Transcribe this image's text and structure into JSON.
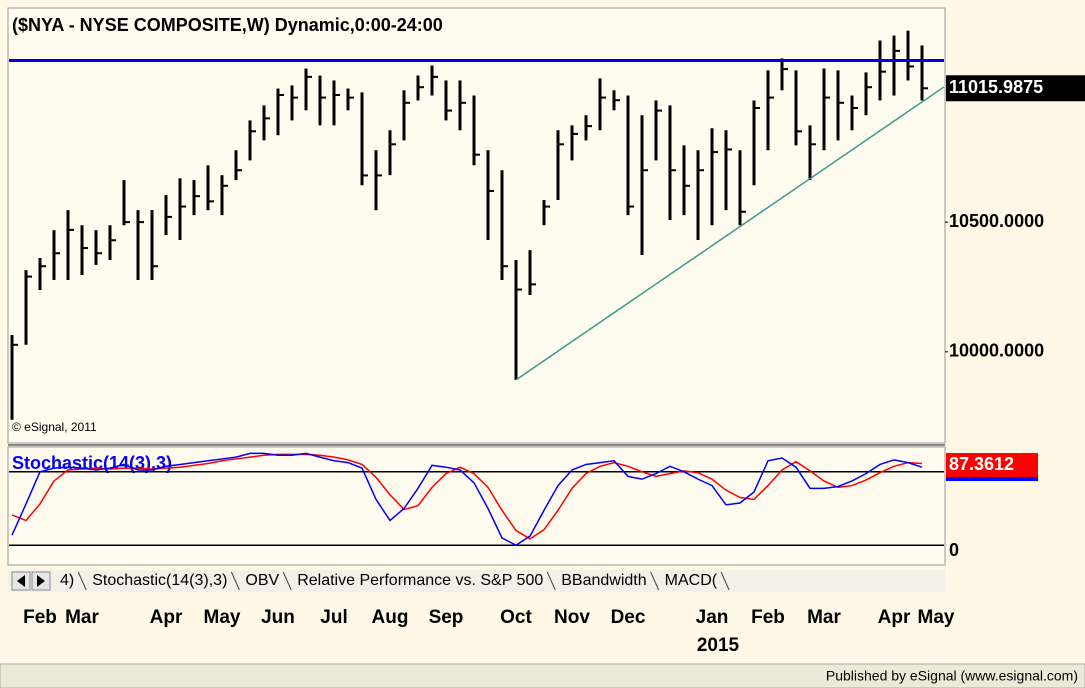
{
  "chart_data": [
    {
      "type": "ohlc",
      "title": "($NYA - NYSE COMPOSITE,W) Dynamic,0:00-24:00",
      "annotation": "© eSignal, 2011",
      "categories": [
        null,
        null,
        "Feb",
        null,
        null,
        "Mar",
        null,
        null,
        null,
        null,
        null,
        "Apr",
        null,
        null,
        null,
        "May",
        null,
        null,
        null,
        "Jun",
        null,
        null,
        null,
        "Jul",
        null,
        null,
        null,
        "Aug",
        null,
        null,
        null,
        "Sep",
        null,
        null,
        null,
        null,
        "Oct",
        null,
        null,
        null,
        "Nov",
        null,
        null,
        null,
        "Dec",
        null,
        null,
        null,
        null,
        null,
        "Jan",
        null,
        null,
        null,
        "Feb",
        null,
        null,
        null,
        "Mar",
        null,
        null,
        null,
        null,
        "Apr",
        null,
        null,
        "May"
      ],
      "year_label": "2015",
      "high": [
        10065,
        10315,
        10362,
        10469,
        10546,
        10488,
        10469,
        10488,
        10662,
        10546,
        10546,
        10604,
        10669,
        10662,
        10719,
        10681,
        10777,
        10892,
        10950,
        11015,
        11027,
        11092,
        11065,
        11046,
        11015,
        11000,
        10777,
        10854,
        11008,
        11065,
        11104,
        11046,
        11046,
        10988,
        10777,
        10700,
        10354,
        10392,
        10585,
        10854,
        10873,
        10912,
        11054,
        11008,
        10988,
        10912,
        10969,
        10950,
        10796,
        10777,
        10862,
        10854,
        10777,
        10969,
        11085,
        11131,
        11085,
        10873,
        11092,
        11085,
        10988,
        11077,
        11200,
        11219,
        11238,
        11181,
        null
      ],
      "low": [
        9738,
        10027,
        10238,
        10277,
        10277,
        10296,
        10335,
        10354,
        10488,
        10277,
        10277,
        10450,
        10431,
        10527,
        10546,
        10527,
        10662,
        10738,
        10815,
        10835,
        10892,
        10931,
        10873,
        10873,
        10931,
        10642,
        10546,
        10681,
        10815,
        10969,
        10988,
        10892,
        10854,
        10719,
        10431,
        10277,
        9892,
        10219,
        10488,
        10585,
        10738,
        10815,
        10854,
        10931,
        10527,
        10373,
        10738,
        10508,
        10527,
        10431,
        10488,
        10546,
        10488,
        10642,
        10777,
        11008,
        10796,
        10662,
        10777,
        10815,
        10854,
        10912,
        10969,
        10988,
        11046,
        10969,
        null
      ],
      "close": [
        10027,
        10290,
        10330,
        10380,
        10470,
        10400,
        10380,
        10430,
        10500,
        10500,
        10330,
        10520,
        10560,
        10600,
        10580,
        10640,
        10700,
        10850,
        10900,
        10990,
        10980,
        11060,
        10980,
        10990,
        10980,
        10680,
        10680,
        10800,
        10960,
        11020,
        11060,
        10930,
        10960,
        10760,
        10620,
        10330,
        10240,
        10260,
        10560,
        10800,
        10840,
        10870,
        10980,
        10970,
        10560,
        10700,
        10930,
        10700,
        10640,
        10700,
        10770,
        10780,
        10540,
        10940,
        10980,
        11090,
        10850,
        10800,
        10980,
        10960,
        10940,
        11020,
        11080,
        11160,
        11100,
        11016,
        null
      ],
      "color": "#000000",
      "ylim": [
        9660,
        11310
      ],
      "yticks": [
        {
          "value": 10000,
          "label": "10000.0000"
        },
        {
          "value": 10500,
          "label": "10500.0000"
        }
      ],
      "last_value": {
        "value": 11015.9875,
        "label": "11015.9875"
      },
      "resistance": {
        "value": 11123,
        "color": "#0000dd"
      },
      "trendline": {
        "x": [
          36,
          66
        ],
        "y": [
          9892,
          11000
        ],
        "color": "#3a9a8a"
      }
    },
    {
      "type": "line",
      "title": "Stochastic(14(3),3)",
      "series": [
        {
          "color": "#0000ff",
          "values": [
            11,
            45,
            80,
            84,
            85,
            84,
            82,
            84,
            88,
            82,
            82,
            86,
            88,
            90,
            92,
            94,
            96,
            100,
            100,
            98,
            98,
            100,
            96,
            92,
            90,
            84,
            50,
            27,
            40,
            62,
            87,
            85,
            82,
            68,
            40,
            8,
            0,
            10,
            38,
            65,
            82,
            88,
            90,
            92,
            75,
            72,
            78,
            86,
            80,
            72,
            65,
            44,
            46,
            58,
            92,
            95,
            85,
            62,
            62,
            64,
            70,
            78,
            88,
            93,
            90,
            85,
            null
          ]
        },
        {
          "color": "#ff0000",
          "values": [
            33,
            27,
            45,
            70,
            82,
            83,
            84,
            83,
            84,
            84,
            83,
            84,
            85,
            87,
            89,
            92,
            94,
            96,
            98,
            99,
            99,
            99,
            98,
            96,
            93,
            88,
            74,
            55,
            39,
            43,
            63,
            78,
            85,
            78,
            63,
            38,
            16,
            7,
            17,
            38,
            62,
            78,
            86,
            90,
            86,
            80,
            75,
            78,
            81,
            79,
            72,
            60,
            52,
            50,
            65,
            82,
            91,
            81,
            70,
            63,
            65,
            71,
            79,
            86,
            90,
            89,
            null
          ]
        }
      ],
      "ylim": [
        -3,
        107
      ],
      "yticks": [
        0
      ],
      "levels": [
        80,
        0
      ],
      "last_value": {
        "value": 87.3612,
        "label": "87.3612"
      }
    }
  ],
  "tabs": [
    "4)",
    "Stochastic(14(3),3)",
    "OBV",
    "Relative Performance vs. S&P 500",
    "BBandwidth",
    "MACD("
  ],
  "footer": "Published by eSignal (www.esignal.com)"
}
